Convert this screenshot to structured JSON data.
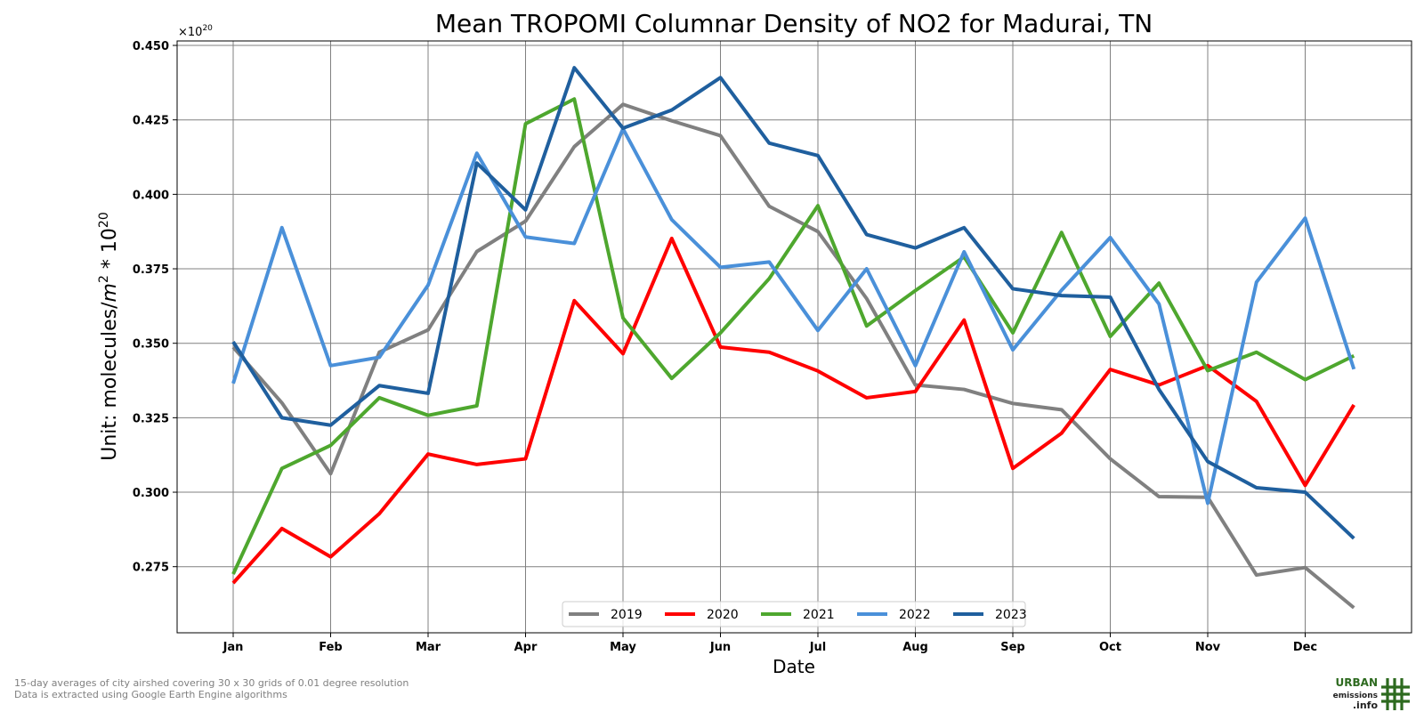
{
  "chart_data": {
    "type": "line",
    "title": "Mean TROPOMI Columnar Density of NO2 for Madurai, TN",
    "xlabel": "Date",
    "ylabel_prefix": "Unit: molecules/",
    "ylabel_m": "m",
    "ylabel_exp": "2",
    "ylabel_mid": " * 10",
    "ylabel_exp2": "20",
    "offset_base": "×10",
    "offset_exp": "20",
    "months": [
      "Jan",
      "Feb",
      "Mar",
      "Apr",
      "May",
      "Jun",
      "Jul",
      "Aug",
      "Sep",
      "Oct",
      "Nov",
      "Dec"
    ],
    "yticks": [
      "0.275",
      "0.300",
      "0.325",
      "0.350",
      "0.375",
      "0.400",
      "0.425",
      "0.450"
    ],
    "ylim": [
      0.2528,
      0.4515
    ],
    "x_periods": 24,
    "grid": true,
    "legend_position": "bottom-center",
    "series": [
      {
        "name": "2019",
        "color": "#808080",
        "values": [
          0.3487,
          0.33,
          0.3062,
          0.347,
          0.3545,
          0.3808,
          0.391,
          0.416,
          0.4302,
          0.4247,
          0.4197,
          0.396,
          0.3875,
          0.365,
          0.336,
          0.3345,
          0.3298,
          0.3277,
          0.3112,
          0.2985,
          0.2983,
          0.2722,
          0.2747,
          0.2612
        ]
      },
      {
        "name": "2020",
        "color": "#ff0000",
        "values": [
          0.2695,
          0.2878,
          0.2783,
          0.2928,
          0.3128,
          0.3093,
          0.3112,
          0.3643,
          0.3465,
          0.3852,
          0.3487,
          0.347,
          0.3407,
          0.3317,
          0.3338,
          0.3578,
          0.308,
          0.3198,
          0.3412,
          0.336,
          0.3425,
          0.3305,
          0.3023,
          0.3293
        ]
      },
      {
        "name": "2021",
        "color": "#4ea72e",
        "values": [
          0.2725,
          0.308,
          0.3157,
          0.3317,
          0.3258,
          0.329,
          0.4237,
          0.432,
          0.3585,
          0.3382,
          0.3535,
          0.3717,
          0.3962,
          0.3558,
          0.3677,
          0.379,
          0.3535,
          0.3872,
          0.3523,
          0.3702,
          0.3408,
          0.347,
          0.3378,
          0.3458
        ]
      },
      {
        "name": "2022",
        "color": "#4a90d9",
        "values": [
          0.3365,
          0.3888,
          0.3425,
          0.3453,
          0.3695,
          0.4138,
          0.3857,
          0.3835,
          0.422,
          0.3915,
          0.3755,
          0.3773,
          0.3543,
          0.375,
          0.3425,
          0.3807,
          0.3478,
          0.3678,
          0.3855,
          0.3632,
          0.2963,
          0.3705,
          0.392,
          0.3413
        ]
      },
      {
        "name": "2023",
        "color": "#1f5f9e",
        "values": [
          0.3505,
          0.325,
          0.3225,
          0.3358,
          0.3332,
          0.4105,
          0.3948,
          0.4425,
          0.4222,
          0.4283,
          0.4392,
          0.4172,
          0.413,
          0.3865,
          0.382,
          0.3888,
          0.3683,
          0.366,
          0.3655,
          0.3345,
          0.3103,
          0.3015,
          0.3,
          0.2845
        ]
      }
    ]
  },
  "footnote": {
    "line1": "15-day averages of city airshed covering 30 x 30 grids of 0.01 degree resolution",
    "line2": "Data is extracted using Google Earth Engine algorithms"
  },
  "logo": {
    "line1": "URBAN",
    "line2": "emissions",
    "line3": ".info",
    "color": "#2d6a1f"
  }
}
